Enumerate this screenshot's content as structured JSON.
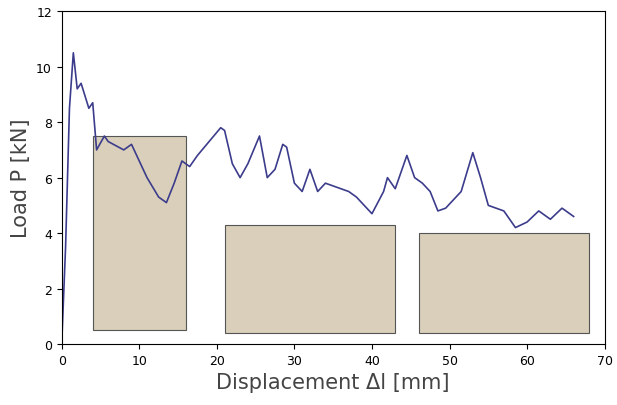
{
  "chart_data": {
    "type": "line",
    "x_label": "Displacement Δl [mm]",
    "y_label": "Load P [kN]",
    "x": [
      0,
      0.5,
      1,
      1.5,
      2,
      2.5,
      3.5,
      4,
      4.5,
      5.5,
      6,
      8,
      9,
      11,
      12.5,
      13.5,
      14.5,
      15.5,
      16.5,
      17.5,
      19,
      20.5,
      21,
      22,
      23,
      24,
      25.5,
      26.5,
      27.5,
      28.5,
      29,
      30,
      31,
      32,
      33,
      34,
      35,
      37,
      38,
      40,
      41.5,
      42,
      43,
      44,
      44.5,
      45.5,
      46.5,
      47.5,
      48.5,
      49.5,
      50.5,
      51.5,
      53,
      54,
      55,
      57,
      58.5,
      60,
      61.5,
      63,
      64.5,
      66
    ],
    "values": [
      0,
      3.5,
      8.5,
      10.5,
      9.2,
      9.4,
      8.5,
      8.7,
      7.0,
      7.5,
      7.3,
      7.0,
      7.2,
      6.0,
      5.3,
      5.1,
      5.8,
      6.6,
      6.4,
      6.8,
      7.3,
      7.8,
      7.7,
      6.5,
      6.0,
      6.5,
      7.5,
      6.0,
      6.3,
      7.2,
      7.1,
      5.8,
      5.5,
      6.3,
      5.5,
      5.8,
      5.7,
      5.5,
      5.3,
      4.7,
      5.5,
      6.0,
      5.6,
      6.4,
      6.8,
      6.0,
      5.8,
      5.5,
      4.8,
      4.9,
      5.2,
      5.5,
      6.9,
      6.0,
      5.0,
      4.8,
      4.2,
      4.4,
      4.8,
      4.5,
      4.9,
      4.6
    ],
    "color": "#3c3c8c",
    "xlim": [
      0,
      70
    ],
    "xticks": [
      0,
      10,
      20,
      30,
      40,
      50,
      60,
      70
    ],
    "ylim": [
      0,
      12
    ],
    "yticks": [
      0,
      2,
      4,
      6,
      8,
      10,
      12
    ],
    "grid": false
  }
}
